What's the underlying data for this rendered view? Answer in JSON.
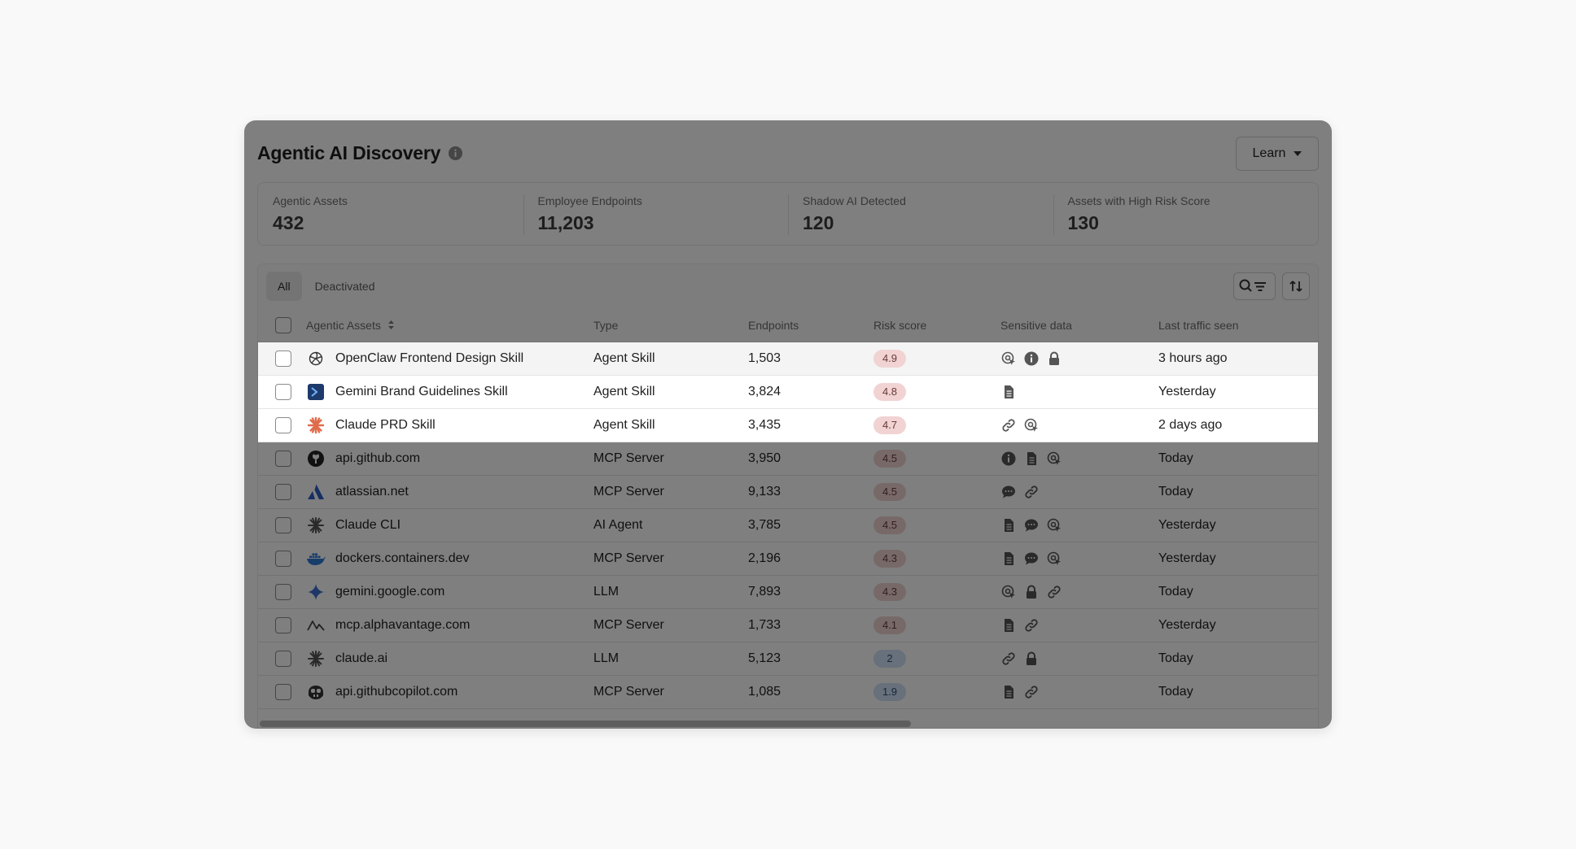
{
  "title": "Agentic AI Discovery",
  "learn_label": "Learn",
  "stats": [
    {
      "label": "Agentic Assets",
      "value": "432"
    },
    {
      "label": "Employee Endpoints",
      "value": "11,203"
    },
    {
      "label": "Shadow AI Detected",
      "value": "120"
    },
    {
      "label": "Assets with High Risk Score",
      "value": "130"
    }
  ],
  "tabs": [
    {
      "label": "All"
    },
    {
      "label": "Deactivated"
    }
  ],
  "columns": {
    "name": "Agentic Assets",
    "type": "Type",
    "endpoints": "Endpoints",
    "risk": "Risk score",
    "sensitive": "Sensitive data",
    "last": "Last traffic seen"
  },
  "rows": [
    {
      "name": "OpenClaw Frontend Design Skill",
      "icon": "openai-icon",
      "type": "Agent Skill",
      "endpoints": "1,503",
      "risk": "4.9",
      "risk_level": "high",
      "sensitive": [
        "location-icon",
        "info-icon",
        "lock-icon"
      ],
      "last": "3 hours ago",
      "highlighted": true
    },
    {
      "name": "Gemini  Brand Guidelines Skill",
      "icon": "terminal-icon",
      "type": "Agent Skill",
      "endpoints": "3,824",
      "risk": "4.8",
      "risk_level": "high",
      "sensitive": [
        "document-icon"
      ],
      "last": "Yesterday",
      "highlighted": true
    },
    {
      "name": "Claude PRD Skill",
      "icon": "claude-icon",
      "type": "Agent Skill",
      "endpoints": "3,435",
      "risk": "4.7",
      "risk_level": "high",
      "sensitive": [
        "link-icon",
        "location-icon"
      ],
      "last": "2 days ago",
      "highlighted": true
    },
    {
      "name": "api.github.com",
      "icon": "github-icon",
      "type": "MCP Server",
      "endpoints": "3,950",
      "risk": "4.5",
      "risk_level": "high",
      "sensitive": [
        "info-icon",
        "document-icon",
        "location-icon"
      ],
      "last": "Today",
      "highlighted": false
    },
    {
      "name": "atlassian.net",
      "icon": "atlassian-icon",
      "type": "MCP Server",
      "endpoints": "9,133",
      "risk": "4.5",
      "risk_level": "high",
      "sensitive": [
        "chat-icon",
        "link-icon"
      ],
      "last": "Today",
      "highlighted": false
    },
    {
      "name": "Claude CLI",
      "icon": "claude-icon",
      "type": "AI Agent",
      "endpoints": "3,785",
      "risk": "4.5",
      "risk_level": "high",
      "sensitive": [
        "document-icon",
        "chat-icon",
        "location-icon"
      ],
      "last": "Yesterday",
      "highlighted": false
    },
    {
      "name": "dockers.containers.dev",
      "icon": "docker-icon",
      "type": "MCP Server",
      "endpoints": "2,196",
      "risk": "4.3",
      "risk_level": "high",
      "sensitive": [
        "document-icon",
        "chat-icon",
        "location-icon"
      ],
      "last": "Yesterday",
      "highlighted": false
    },
    {
      "name": "gemini.google.com",
      "icon": "gemini-icon",
      "type": "LLM",
      "endpoints": "7,893",
      "risk": "4.3",
      "risk_level": "high",
      "sensitive": [
        "location-icon",
        "lock-icon",
        "link-icon"
      ],
      "last": "Today",
      "highlighted": false
    },
    {
      "name": "mcp.alphavantage.com",
      "icon": "alphavantage-icon",
      "type": "MCP Server",
      "endpoints": "1,733",
      "risk": "4.1",
      "risk_level": "high",
      "sensitive": [
        "document-icon",
        "link-icon"
      ],
      "last": "Yesterday",
      "highlighted": false
    },
    {
      "name": "claude.ai",
      "icon": "claude-icon",
      "type": "LLM",
      "endpoints": "5,123",
      "risk": "2",
      "risk_level": "low",
      "sensitive": [
        "link-icon",
        "lock-icon"
      ],
      "last": "Today",
      "highlighted": false
    },
    {
      "name": "api.githubcopilot.com",
      "icon": "copilot-icon",
      "type": "MCP Server",
      "endpoints": "1,085",
      "risk": "1.9",
      "risk_level": "low",
      "sensitive": [
        "document-icon",
        "link-icon"
      ],
      "last": "Today",
      "highlighted": false
    }
  ]
}
